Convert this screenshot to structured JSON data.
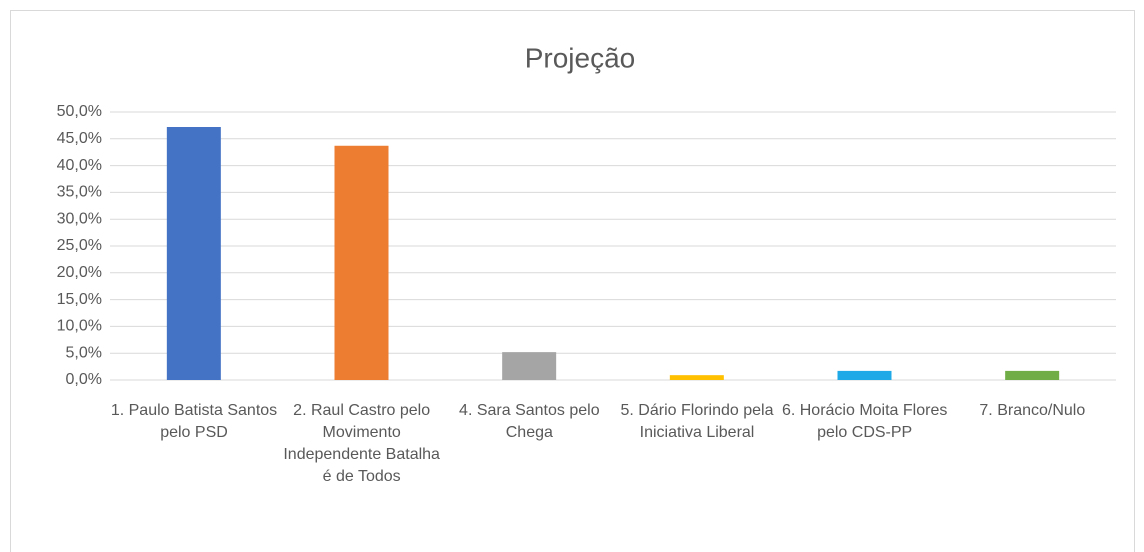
{
  "chart_data": {
    "type": "bar",
    "title": "Projeção",
    "categories": [
      "1. Paulo Batista Santos pelo PSD",
      "2. Raul Castro pelo Movimento Independente Batalha é de Todos",
      "4. Sara Santos pelo Chega",
      "5. Dário Florindo pela Iniciativa Liberal",
      "6. Horácio Moita Flores pelo CDS-PP",
      "7. Branco/Nulo"
    ],
    "values": [
      47.2,
      43.7,
      5.2,
      0.9,
      1.7,
      1.7
    ],
    "colors": [
      "#4472c4",
      "#ed7d31",
      "#a5a5a5",
      "#ffc000",
      "#1fa9e6",
      "#70ad47"
    ],
    "ylim": [
      0,
      50
    ],
    "yticks": [
      {
        "value": 0,
        "label": "0,0%"
      },
      {
        "value": 5,
        "label": "5,0%"
      },
      {
        "value": 10,
        "label": "10,0%"
      },
      {
        "value": 15,
        "label": "15,0%"
      },
      {
        "value": 20,
        "label": "20,0%"
      },
      {
        "value": 25,
        "label": "25,0%"
      },
      {
        "value": 30,
        "label": "30,0%"
      },
      {
        "value": 35,
        "label": "35,0%"
      },
      {
        "value": 40,
        "label": "40,0%"
      },
      {
        "value": 45,
        "label": "45,0%"
      },
      {
        "value": 50,
        "label": "50,0%"
      }
    ],
    "grid": true
  }
}
